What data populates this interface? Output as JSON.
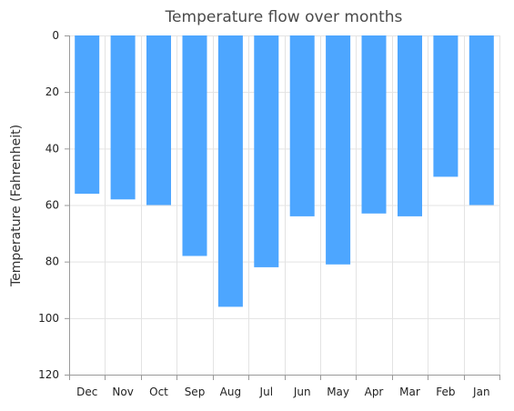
{
  "chart_data": {
    "type": "bar",
    "title": "Temperature flow over months",
    "xlabel": "",
    "ylabel": "Temperature (Fahrenheit)",
    "categories": [
      "Dec",
      "Nov",
      "Oct",
      "Sep",
      "Aug",
      "Jul",
      "Jun",
      "May",
      "Apr",
      "Mar",
      "Feb",
      "Jan"
    ],
    "values": [
      56,
      58,
      60,
      78,
      96,
      82,
      64,
      81,
      63,
      64,
      50,
      60
    ],
    "ylim": [
      0,
      120
    ],
    "yticks": [
      0,
      20,
      40,
      60,
      80,
      100,
      120
    ],
    "y_inverted": true,
    "grid": true,
    "bar_color": "#4da6ff"
  }
}
